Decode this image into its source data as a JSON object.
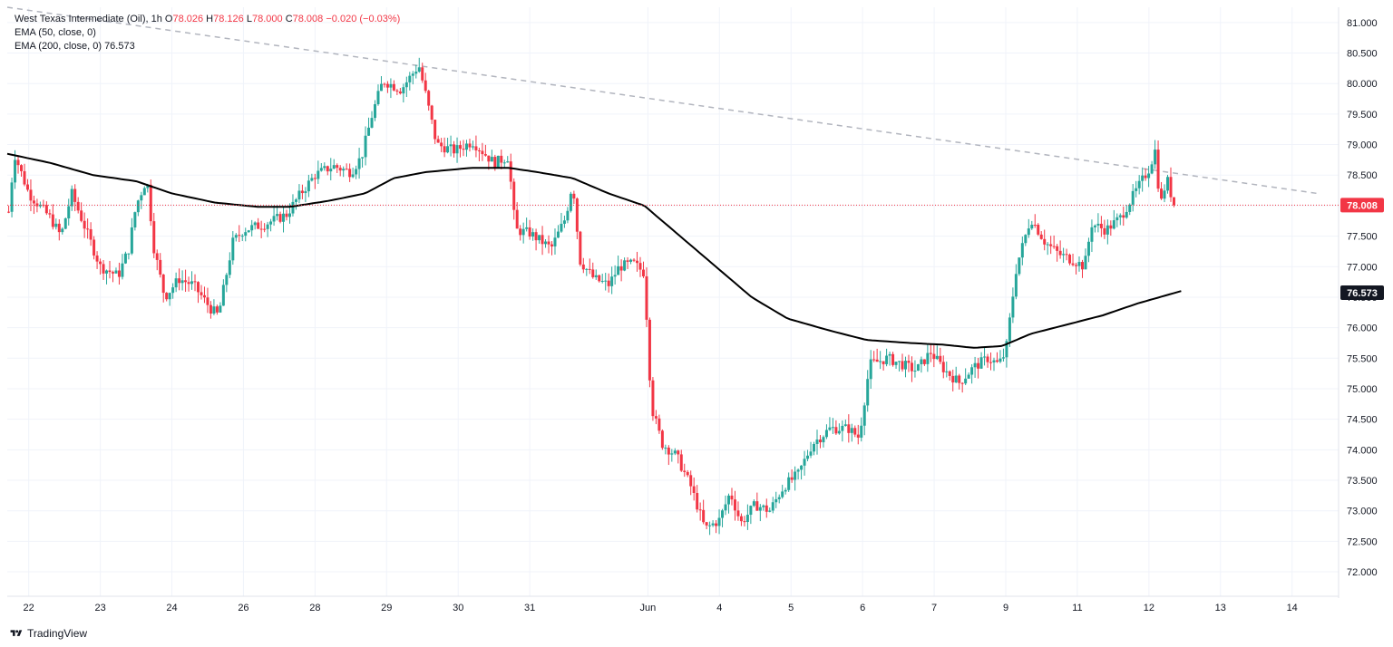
{
  "legend": {
    "symbol": "West Texas Intermediate (Oil), 1h",
    "o_label": "O",
    "o_value": "78.026",
    "h_label": "H",
    "h_value": "78.126",
    "l_label": "L",
    "l_value": "78.000",
    "c_label": "C",
    "c_value": "78.008",
    "change": "−0.020 (−0.03%)",
    "ema50": "EMA (50, close, 0)",
    "ema200": "EMA (200, close, 0)",
    "ema200_value": "76.573"
  },
  "branding": {
    "text": "TradingView",
    "icon": "tradingview-logo-icon"
  },
  "colors": {
    "up": "#26a69a",
    "down": "#f23645",
    "ema": "#000000",
    "trendline": "#b2b5be",
    "grid": "#f0f3fa",
    "last_price_bg": "#f23645",
    "ema_label_bg": "#131722"
  },
  "chart_data": {
    "type": "candlestick",
    "title": "West Texas Intermediate (Oil), 1h",
    "ylim": [
      71.6,
      81.25
    ],
    "y_ticks": [
      "81.000",
      "80.500",
      "80.000",
      "79.500",
      "79.000",
      "78.500",
      "78.000",
      "77.500",
      "77.000",
      "76.500",
      "76.000",
      "75.500",
      "75.000",
      "74.500",
      "74.000",
      "73.500",
      "73.000",
      "72.500",
      "72.000"
    ],
    "x_ticks": [
      "22",
      "23",
      "24",
      "26",
      "28",
      "29",
      "30",
      "31",
      "Jun",
      "4",
      "5",
      "6",
      "7",
      "9",
      "11",
      "12",
      "13",
      "14"
    ],
    "x_range": [
      0,
      18.6
    ],
    "last_price": 78.008,
    "last_price_label": "78.008",
    "ema200_last": 76.573,
    "ema200_label": "76.573",
    "price_anchors": [
      [
        0.02,
        77.9
      ],
      [
        0.1,
        78.85
      ],
      [
        0.3,
        78.2
      ],
      [
        0.6,
        77.8
      ],
      [
        0.75,
        77.5
      ],
      [
        0.9,
        78.2
      ],
      [
        1.1,
        77.6
      ],
      [
        1.3,
        77.0
      ],
      [
        1.55,
        76.85
      ],
      [
        1.7,
        77.3
      ],
      [
        1.8,
        78.0
      ],
      [
        1.95,
        78.45
      ],
      [
        2.05,
        77.3
      ],
      [
        2.2,
        76.5
      ],
      [
        2.4,
        76.8
      ],
      [
        2.6,
        76.7
      ],
      [
        2.85,
        76.3
      ],
      [
        2.95,
        76.2
      ],
      [
        3.05,
        76.8
      ],
      [
        3.15,
        77.4
      ],
      [
        3.3,
        77.6
      ],
      [
        3.6,
        77.7
      ],
      [
        3.9,
        77.85
      ],
      [
        4.1,
        78.2
      ],
      [
        4.3,
        78.5
      ],
      [
        4.55,
        78.65
      ],
      [
        4.8,
        78.55
      ],
      [
        4.95,
        78.8
      ],
      [
        5.1,
        79.5
      ],
      [
        5.25,
        80.05
      ],
      [
        5.5,
        79.9
      ],
      [
        5.75,
        80.3
      ],
      [
        5.85,
        79.8
      ],
      [
        6.0,
        79.0
      ],
      [
        6.25,
        78.9
      ],
      [
        6.5,
        79.05
      ],
      [
        6.8,
        78.7
      ],
      [
        7.0,
        78.8
      ],
      [
        7.1,
        77.6
      ],
      [
        7.3,
        77.55
      ],
      [
        7.6,
        77.3
      ],
      [
        7.8,
        77.8
      ],
      [
        7.9,
        78.4
      ],
      [
        8.0,
        77.1
      ],
      [
        8.2,
        76.8
      ],
      [
        8.4,
        76.7
      ],
      [
        8.55,
        77.0
      ],
      [
        8.75,
        77.05
      ],
      [
        8.9,
        76.9
      ],
      [
        9.0,
        74.7
      ],
      [
        9.15,
        74.1
      ],
      [
        9.35,
        73.9
      ],
      [
        9.55,
        73.4
      ],
      [
        9.75,
        72.7
      ],
      [
        9.95,
        72.85
      ],
      [
        10.1,
        73.3
      ],
      [
        10.25,
        72.8
      ],
      [
        10.45,
        73.1
      ],
      [
        10.65,
        73.0
      ],
      [
        10.85,
        73.4
      ],
      [
        11.05,
        73.6
      ],
      [
        11.25,
        74.1
      ],
      [
        11.5,
        74.35
      ],
      [
        11.75,
        74.35
      ],
      [
        11.9,
        74.2
      ],
      [
        12.05,
        75.4
      ],
      [
        12.3,
        75.5
      ],
      [
        12.5,
        75.4
      ],
      [
        12.7,
        75.3
      ],
      [
        12.9,
        75.6
      ],
      [
        13.1,
        75.3
      ],
      [
        13.3,
        75.1
      ],
      [
        13.5,
        75.35
      ],
      [
        13.7,
        75.5
      ],
      [
        13.85,
        75.4
      ],
      [
        13.95,
        75.6
      ],
      [
        14.1,
        77.0
      ],
      [
        14.3,
        77.8
      ],
      [
        14.5,
        77.4
      ],
      [
        14.7,
        77.2
      ],
      [
        14.9,
        77.1
      ],
      [
        15.05,
        77.0
      ],
      [
        15.15,
        77.7
      ],
      [
        15.35,
        77.6
      ],
      [
        15.55,
        77.8
      ],
      [
        15.75,
        78.2
      ],
      [
        15.95,
        78.6
      ],
      [
        16.05,
        78.95
      ],
      [
        16.1,
        77.95
      ],
      [
        16.2,
        78.45
      ],
      [
        16.3,
        78.0
      ]
    ],
    "ema200_anchors": [
      [
        0.0,
        78.85
      ],
      [
        0.6,
        78.7
      ],
      [
        1.2,
        78.5
      ],
      [
        1.8,
        78.4
      ],
      [
        2.3,
        78.2
      ],
      [
        2.9,
        78.05
      ],
      [
        3.5,
        77.98
      ],
      [
        3.95,
        77.98
      ],
      [
        4.5,
        78.08
      ],
      [
        5.0,
        78.2
      ],
      [
        5.4,
        78.45
      ],
      [
        5.85,
        78.55
      ],
      [
        6.5,
        78.62
      ],
      [
        7.0,
        78.62
      ],
      [
        7.4,
        78.55
      ],
      [
        7.9,
        78.45
      ],
      [
        8.4,
        78.2
      ],
      [
        8.9,
        78.0
      ],
      [
        9.4,
        77.5
      ],
      [
        9.9,
        77.0
      ],
      [
        10.4,
        76.5
      ],
      [
        10.9,
        76.15
      ],
      [
        11.5,
        75.95
      ],
      [
        12.0,
        75.8
      ],
      [
        12.6,
        75.75
      ],
      [
        13.1,
        75.72
      ],
      [
        13.5,
        75.67
      ],
      [
        13.9,
        75.7
      ],
      [
        14.3,
        75.9
      ],
      [
        14.8,
        76.05
      ],
      [
        15.3,
        76.2
      ],
      [
        15.8,
        76.4
      ],
      [
        16.4,
        76.6
      ]
    ],
    "trendline": [
      [
        0.0,
        81.25
      ],
      [
        18.3,
        78.2
      ]
    ]
  }
}
